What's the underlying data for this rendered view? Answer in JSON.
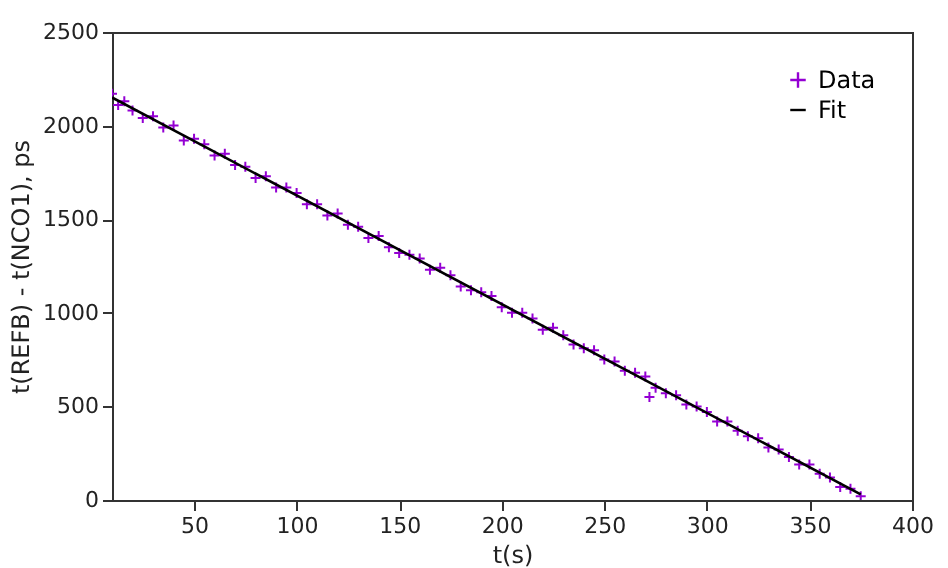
{
  "chart_data": {
    "type": "scatter",
    "xlabel": "t(s)",
    "ylabel": "t(REFB) - t(NCO1), ps",
    "xlim": [
      10,
      400
    ],
    "xticks": [
      50,
      100,
      150,
      200,
      250,
      300,
      350,
      400
    ],
    "ylim": [
      0,
      2500
    ],
    "yticks": [
      0,
      500,
      1000,
      1500,
      2000,
      2500
    ],
    "legend": "top right",
    "marker": "cross",
    "grid": false,
    "series": [
      {
        "name": "Data",
        "color": "#9400d3",
        "x": [
          10,
          13,
          16,
          20,
          25,
          30,
          35,
          40,
          45,
          50,
          55,
          60,
          65,
          70,
          75,
          80,
          85,
          90,
          95,
          100,
          105,
          110,
          115,
          120,
          125,
          130,
          135,
          140,
          145,
          150,
          155,
          160,
          165,
          170,
          175,
          180,
          185,
          190,
          195,
          200,
          205,
          210,
          215,
          220,
          225,
          230,
          235,
          240,
          245,
          250,
          255,
          260,
          265,
          270,
          272,
          275,
          280,
          285,
          290,
          295,
          300,
          305,
          310,
          315,
          320,
          325,
          330,
          335,
          340,
          345,
          350,
          355,
          360,
          365,
          370,
          375
        ],
        "values": [
          2170,
          2110,
          2130,
          2080,
          2040,
          2050,
          1990,
          2000,
          1920,
          1930,
          1900,
          1840,
          1850,
          1790,
          1780,
          1720,
          1730,
          1670,
          1670,
          1640,
          1580,
          1580,
          1520,
          1530,
          1470,
          1460,
          1400,
          1410,
          1350,
          1320,
          1310,
          1290,
          1230,
          1240,
          1200,
          1140,
          1120,
          1110,
          1090,
          1030,
          1000,
          1000,
          970,
          910,
          920,
          880,
          830,
          810,
          800,
          750,
          740,
          690,
          680,
          660,
          550,
          600,
          570,
          560,
          510,
          500,
          470,
          420,
          420,
          370,
          340,
          330,
          280,
          270,
          230,
          190,
          190,
          140,
          120,
          70,
          60,
          20
        ]
      },
      {
        "name": "Fit",
        "type": "line",
        "marker": "none",
        "color": "#000000",
        "x": [
          10,
          375
        ],
        "values": [
          2150,
          30
        ],
        "line_style": "solid"
      }
    ]
  }
}
